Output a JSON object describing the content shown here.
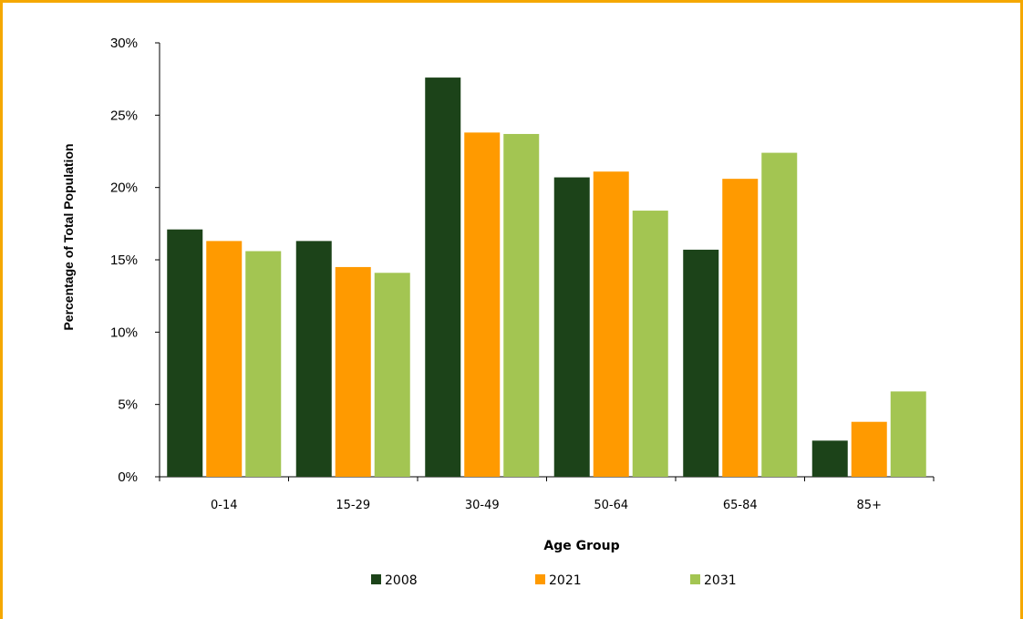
{
  "chart_data": {
    "type": "bar",
    "title": "",
    "xlabel": "Age Group",
    "ylabel": "Percentage of Total Population",
    "categories": [
      "0-14",
      "15-29",
      "30-49",
      "50-64",
      "65-84",
      "85+"
    ],
    "series": [
      {
        "name": "2008",
        "color": "#1c4319",
        "values": [
          17.1,
          16.3,
          27.6,
          20.7,
          15.7,
          2.5
        ]
      },
      {
        "name": "2021",
        "color": "#ff9a00",
        "values": [
          16.3,
          14.5,
          23.8,
          21.1,
          20.6,
          3.8
        ]
      },
      {
        "name": "2031",
        "color": "#a3c552",
        "values": [
          15.6,
          14.1,
          23.7,
          18.4,
          22.4,
          5.9
        ]
      }
    ],
    "ylim": [
      0,
      30
    ],
    "yticks": [
      "0%",
      "5%",
      "10%",
      "15%",
      "20%",
      "25%",
      "30%"
    ],
    "grid": false,
    "legend_position": "bottom"
  },
  "frame_color": "#f5a800"
}
